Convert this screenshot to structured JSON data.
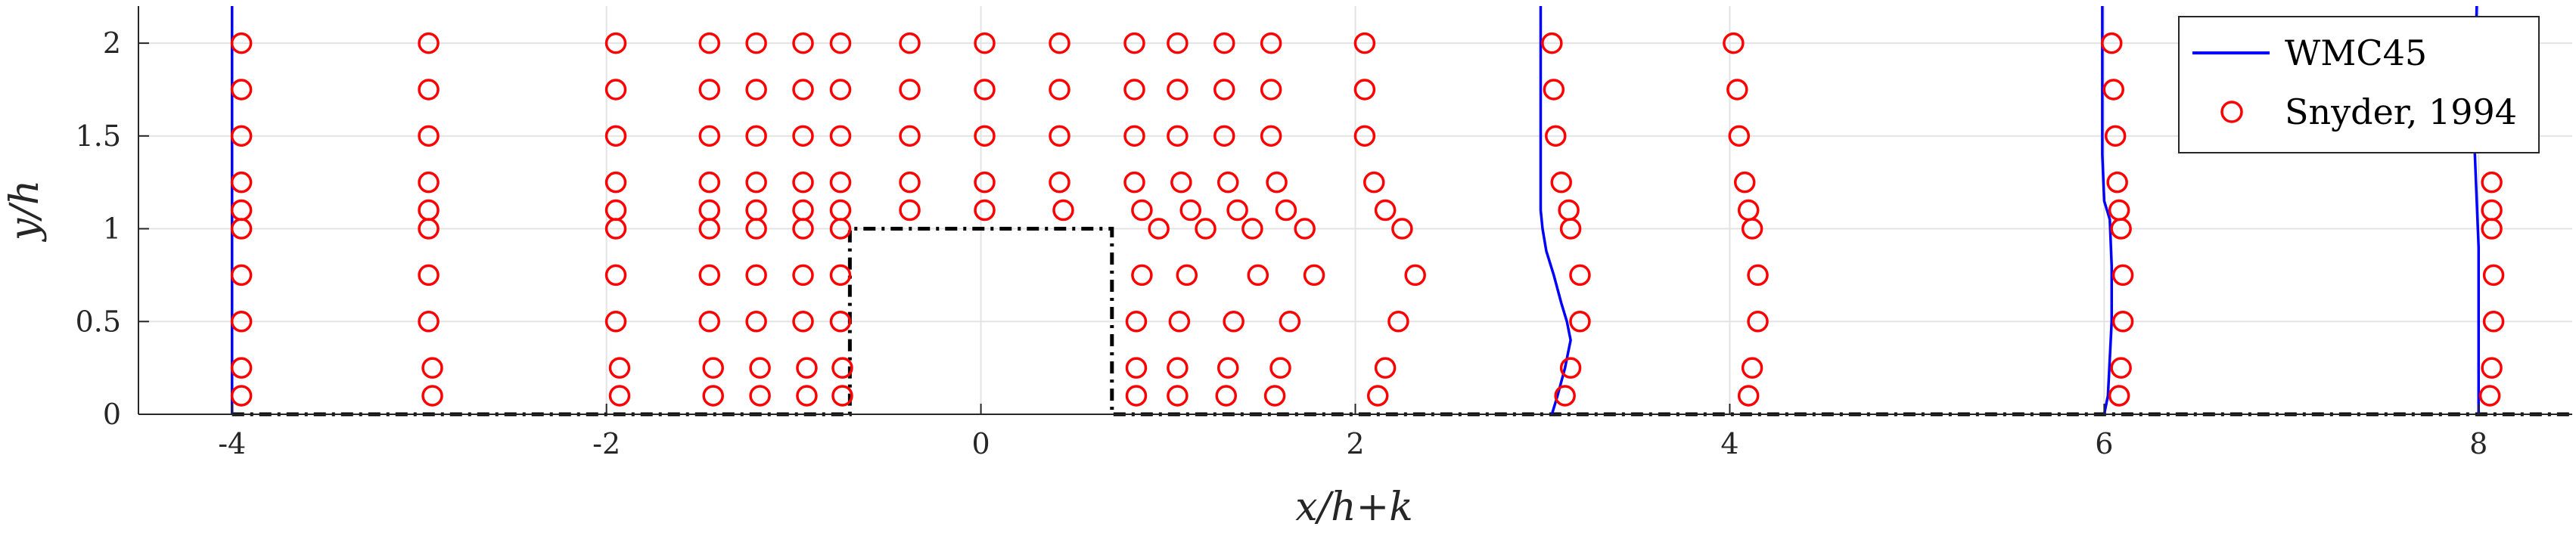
{
  "chart_data": {
    "type": "line",
    "xlabel": "x/h+k",
    "ylabel": "y/h",
    "xlim": [
      -4.5,
      8.5
    ],
    "ylim": [
      0,
      2.2
    ],
    "x_ticks": [
      -4,
      -2,
      0,
      2,
      4,
      6,
      8
    ],
    "x_tick_labels": [
      "-4",
      "-2",
      "0",
      "2",
      "4",
      "6",
      "8"
    ],
    "y_ticks": [
      0,
      0.5,
      1,
      1.5,
      2
    ],
    "y_tick_labels": [
      "0",
      "0.5",
      "1",
      "1.5",
      "2"
    ],
    "grid": true,
    "legend_position": "top-right",
    "series": [
      {
        "name": "WMC45",
        "kind": "line",
        "color": "#0000ff",
        "profiles": [
          {
            "x0": -4,
            "points": [
              [
                -4.0,
                0
              ],
              [
                -4.0,
                2.2
              ]
            ]
          },
          {
            "x0": 3,
            "points": [
              [
                3.05,
                0
              ],
              [
                3.08,
                0.1
              ],
              [
                3.12,
                0.25
              ],
              [
                3.15,
                0.4
              ],
              [
                3.13,
                0.5
              ],
              [
                3.1,
                0.6
              ],
              [
                3.06,
                0.75
              ],
              [
                3.02,
                0.88
              ],
              [
                3.0,
                1.0
              ],
              [
                2.99,
                1.1
              ],
              [
                2.99,
                1.3
              ],
              [
                2.99,
                1.6
              ],
              [
                2.99,
                2.0
              ],
              [
                2.99,
                2.2
              ]
            ]
          },
          {
            "x0": 6,
            "points": [
              [
                6.0,
                0
              ],
              [
                6.02,
                0.1
              ],
              [
                6.03,
                0.3
              ],
              [
                6.04,
                0.5
              ],
              [
                6.04,
                0.8
              ],
              [
                6.03,
                1.05
              ],
              [
                6.0,
                1.15
              ],
              [
                5.99,
                1.4
              ],
              [
                5.99,
                1.8
              ],
              [
                5.99,
                2.2
              ]
            ]
          },
          {
            "x0": 8,
            "points": [
              [
                8.0,
                0
              ],
              [
                8.0,
                0.3
              ],
              [
                8.0,
                0.6
              ],
              [
                8.0,
                0.9
              ],
              [
                7.99,
                1.15
              ],
              [
                7.98,
                1.4
              ],
              [
                7.98,
                1.8
              ],
              [
                7.99,
                2.2
              ]
            ]
          }
        ]
      },
      {
        "name": "Snyder, 1994",
        "kind": "scatter",
        "color": "#ff0000",
        "points": [
          [
            -3.95,
            2.0
          ],
          [
            -3.95,
            1.75
          ],
          [
            -3.95,
            1.5
          ],
          [
            -3.95,
            1.25
          ],
          [
            -3.95,
            1.1
          ],
          [
            -3.95,
            1.0
          ],
          [
            -3.95,
            0.75
          ],
          [
            -3.95,
            0.5
          ],
          [
            -3.95,
            0.25
          ],
          [
            -3.95,
            0.1
          ],
          [
            -2.95,
            2.0
          ],
          [
            -2.95,
            1.75
          ],
          [
            -2.95,
            1.5
          ],
          [
            -2.95,
            1.25
          ],
          [
            -2.95,
            1.1
          ],
          [
            -2.95,
            1.0
          ],
          [
            -2.95,
            0.75
          ],
          [
            -2.95,
            0.5
          ],
          [
            -2.93,
            0.25
          ],
          [
            -2.93,
            0.1
          ],
          [
            -1.95,
            2.0
          ],
          [
            -1.95,
            1.75
          ],
          [
            -1.95,
            1.5
          ],
          [
            -1.95,
            1.25
          ],
          [
            -1.95,
            1.1
          ],
          [
            -1.95,
            1.0
          ],
          [
            -1.95,
            0.75
          ],
          [
            -1.95,
            0.5
          ],
          [
            -1.93,
            0.25
          ],
          [
            -1.93,
            0.1
          ],
          [
            -1.45,
            2.0
          ],
          [
            -1.45,
            1.75
          ],
          [
            -1.45,
            1.5
          ],
          [
            -1.45,
            1.25
          ],
          [
            -1.45,
            1.1
          ],
          [
            -1.45,
            1.0
          ],
          [
            -1.45,
            0.75
          ],
          [
            -1.45,
            0.5
          ],
          [
            -1.43,
            0.25
          ],
          [
            -1.43,
            0.1
          ],
          [
            -1.2,
            2.0
          ],
          [
            -1.2,
            1.75
          ],
          [
            -1.2,
            1.5
          ],
          [
            -1.2,
            1.25
          ],
          [
            -1.2,
            1.1
          ],
          [
            -1.2,
            1.0
          ],
          [
            -1.2,
            0.75
          ],
          [
            -1.2,
            0.5
          ],
          [
            -1.18,
            0.25
          ],
          [
            -1.18,
            0.1
          ],
          [
            -0.95,
            2.0
          ],
          [
            -0.95,
            1.75
          ],
          [
            -0.95,
            1.5
          ],
          [
            -0.95,
            1.25
          ],
          [
            -0.95,
            1.1
          ],
          [
            -0.95,
            1.0
          ],
          [
            -0.95,
            0.75
          ],
          [
            -0.95,
            0.5
          ],
          [
            -0.93,
            0.25
          ],
          [
            -0.93,
            0.1
          ],
          [
            -0.75,
            2.0
          ],
          [
            -0.75,
            1.75
          ],
          [
            -0.75,
            1.5
          ],
          [
            -0.75,
            1.25
          ],
          [
            -0.75,
            1.1
          ],
          [
            -0.75,
            1.0
          ],
          [
            -0.75,
            0.75
          ],
          [
            -0.75,
            0.5
          ],
          [
            -0.74,
            0.25
          ],
          [
            -0.74,
            0.1
          ],
          [
            -0.38,
            2.0
          ],
          [
            -0.38,
            1.75
          ],
          [
            -0.38,
            1.5
          ],
          [
            -0.38,
            1.25
          ],
          [
            -0.38,
            1.1
          ],
          [
            0.02,
            2.0
          ],
          [
            0.02,
            1.75
          ],
          [
            0.02,
            1.5
          ],
          [
            0.02,
            1.25
          ],
          [
            0.02,
            1.1
          ],
          [
            0.42,
            2.0
          ],
          [
            0.42,
            1.75
          ],
          [
            0.42,
            1.5
          ],
          [
            0.42,
            1.25
          ],
          [
            0.44,
            1.1
          ],
          [
            0.82,
            2.0
          ],
          [
            0.82,
            1.75
          ],
          [
            0.82,
            1.5
          ],
          [
            0.82,
            1.25
          ],
          [
            0.86,
            1.1
          ],
          [
            0.95,
            1.0
          ],
          [
            0.86,
            0.75
          ],
          [
            0.83,
            0.5
          ],
          [
            0.83,
            0.25
          ],
          [
            0.83,
            0.1
          ],
          [
            1.05,
            2.0
          ],
          [
            1.05,
            1.75
          ],
          [
            1.05,
            1.5
          ],
          [
            1.07,
            1.25
          ],
          [
            1.12,
            1.1
          ],
          [
            1.2,
            1.0
          ],
          [
            1.1,
            0.75
          ],
          [
            1.06,
            0.5
          ],
          [
            1.05,
            0.25
          ],
          [
            1.05,
            0.1
          ],
          [
            1.3,
            2.0
          ],
          [
            1.3,
            1.75
          ],
          [
            1.3,
            1.5
          ],
          [
            1.32,
            1.25
          ],
          [
            1.37,
            1.1
          ],
          [
            1.45,
            1.0
          ],
          [
            1.48,
            0.75
          ],
          [
            1.35,
            0.5
          ],
          [
            1.32,
            0.25
          ],
          [
            1.31,
            0.1
          ],
          [
            1.55,
            2.0
          ],
          [
            1.55,
            1.75
          ],
          [
            1.55,
            1.5
          ],
          [
            1.58,
            1.25
          ],
          [
            1.63,
            1.1
          ],
          [
            1.73,
            1.0
          ],
          [
            1.78,
            0.75
          ],
          [
            1.65,
            0.5
          ],
          [
            1.6,
            0.25
          ],
          [
            1.57,
            0.1
          ],
          [
            2.05,
            2.0
          ],
          [
            2.05,
            1.75
          ],
          [
            2.05,
            1.5
          ],
          [
            2.1,
            1.25
          ],
          [
            2.16,
            1.1
          ],
          [
            2.25,
            1.0
          ],
          [
            2.32,
            0.75
          ],
          [
            2.23,
            0.5
          ],
          [
            2.16,
            0.25
          ],
          [
            2.12,
            0.1
          ],
          [
            3.05,
            2.0
          ],
          [
            3.06,
            1.75
          ],
          [
            3.07,
            1.5
          ],
          [
            3.1,
            1.25
          ],
          [
            3.14,
            1.1
          ],
          [
            3.15,
            1.0
          ],
          [
            3.2,
            0.75
          ],
          [
            3.2,
            0.5
          ],
          [
            3.15,
            0.25
          ],
          [
            3.12,
            0.1
          ],
          [
            4.02,
            2.0
          ],
          [
            4.04,
            1.75
          ],
          [
            4.05,
            1.5
          ],
          [
            4.08,
            1.25
          ],
          [
            4.1,
            1.1
          ],
          [
            4.12,
            1.0
          ],
          [
            4.15,
            0.75
          ],
          [
            4.15,
            0.5
          ],
          [
            4.12,
            0.25
          ],
          [
            4.1,
            0.1
          ],
          [
            6.04,
            2.0
          ],
          [
            6.05,
            1.75
          ],
          [
            6.06,
            1.5
          ],
          [
            6.07,
            1.25
          ],
          [
            6.08,
            1.1
          ],
          [
            6.09,
            1.0
          ],
          [
            6.1,
            0.75
          ],
          [
            6.1,
            0.5
          ],
          [
            6.09,
            0.25
          ],
          [
            6.08,
            0.1
          ],
          [
            8.07,
            1.25
          ],
          [
            8.07,
            1.1
          ],
          [
            8.07,
            1.0
          ],
          [
            8.08,
            0.75
          ],
          [
            8.08,
            0.5
          ],
          [
            8.07,
            0.25
          ],
          [
            8.06,
            0.1
          ]
        ]
      }
    ],
    "geometry_outline": {
      "color": "#000000",
      "style": "dash-dot",
      "points": [
        [
          -4,
          0
        ],
        [
          -0.7,
          0
        ],
        [
          -0.7,
          1
        ],
        [
          0.7,
          1
        ],
        [
          0.7,
          0
        ],
        [
          8.5,
          0
        ]
      ]
    }
  }
}
